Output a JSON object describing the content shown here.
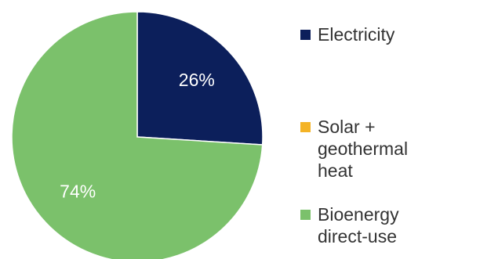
{
  "chart_data": {
    "type": "pie",
    "slices": [
      {
        "name": "Electricity",
        "value": 26,
        "label": "26%",
        "color": "#0c1f5b"
      },
      {
        "name": "Solar + geothermal heat",
        "value": 0,
        "label": "",
        "color": "#f4b326"
      },
      {
        "name": "Bioenergy direct-use",
        "value": 74,
        "label": "74%",
        "color": "#7bc16b"
      }
    ],
    "legend": {
      "placement": "right",
      "entries": [
        "Electricity",
        "Solar + geothermal heat",
        "Bioenergy direct-use"
      ]
    },
    "title": ""
  }
}
